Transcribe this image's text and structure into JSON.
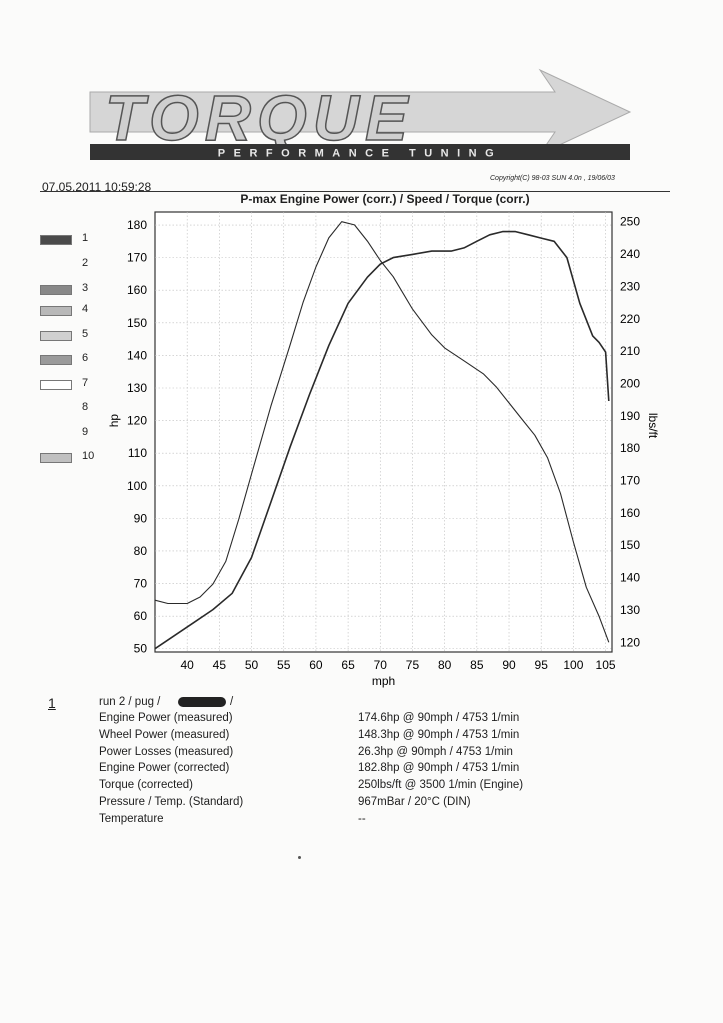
{
  "header": {
    "logo_text": "TORQUE",
    "logo_subtext": "PERFORMANCE TUNING",
    "date": "07.05.2011 10:59:28",
    "copyright": "Copyright(C) 98-03 SUN 4.0n , 19/06/03"
  },
  "chart_data": {
    "type": "line",
    "title": "P-max Engine Power  (corr.) / Speed / Torque (corr.)",
    "xlabel": "mph",
    "ylabel_left": "hp",
    "ylabel_right": "lbs/ft",
    "xlim": [
      35,
      106
    ],
    "ylim_left": [
      49,
      184
    ],
    "ylim_right": [
      117,
      253
    ],
    "x_ticks": [
      40,
      45,
      50,
      55,
      60,
      65,
      70,
      75,
      80,
      85,
      90,
      95,
      100,
      105
    ],
    "y_ticks_left": [
      50,
      60,
      70,
      80,
      90,
      100,
      110,
      120,
      130,
      140,
      150,
      160,
      170,
      180
    ],
    "y_ticks_right": [
      120,
      130,
      140,
      150,
      160,
      170,
      180,
      190,
      200,
      210,
      220,
      230,
      240,
      250
    ],
    "grid": true,
    "series": [
      {
        "axis": "left",
        "points": [
          [
            35,
            50
          ],
          [
            38,
            54
          ],
          [
            41,
            58
          ],
          [
            44,
            62
          ],
          [
            47,
            67
          ],
          [
            50,
            78
          ],
          [
            53,
            95
          ],
          [
            56,
            112
          ],
          [
            59,
            128
          ],
          [
            62,
            143
          ],
          [
            65,
            156
          ],
          [
            68,
            164
          ],
          [
            70,
            168
          ],
          [
            72,
            170
          ],
          [
            75,
            171
          ],
          [
            78,
            172
          ],
          [
            81,
            172
          ],
          [
            83,
            173
          ],
          [
            85,
            175
          ],
          [
            87,
            177
          ],
          [
            89,
            178
          ],
          [
            91,
            178
          ],
          [
            93,
            177
          ],
          [
            95,
            176
          ],
          [
            97,
            175
          ],
          [
            99,
            170
          ],
          [
            101,
            156
          ],
          [
            103,
            146
          ],
          [
            104,
            144
          ],
          [
            105,
            141
          ],
          [
            105.5,
            126
          ]
        ]
      },
      {
        "axis": "right",
        "points": [
          [
            35,
            133
          ],
          [
            37,
            132
          ],
          [
            40,
            132
          ],
          [
            42,
            134
          ],
          [
            44,
            138
          ],
          [
            46,
            145
          ],
          [
            48,
            158
          ],
          [
            50,
            172
          ],
          [
            53,
            193
          ],
          [
            56,
            212
          ],
          [
            58,
            225
          ],
          [
            60,
            236
          ],
          [
            62,
            245
          ],
          [
            64,
            250
          ],
          [
            66,
            249
          ],
          [
            68,
            244
          ],
          [
            70,
            238
          ],
          [
            72,
            233
          ],
          [
            75,
            223
          ],
          [
            78,
            215
          ],
          [
            80,
            211
          ],
          [
            83,
            207
          ],
          [
            86,
            203
          ],
          [
            88,
            199
          ],
          [
            90,
            194
          ],
          [
            92,
            189
          ],
          [
            94,
            184
          ],
          [
            96,
            177
          ],
          [
            98,
            166
          ],
          [
            100,
            151
          ],
          [
            102,
            137
          ],
          [
            104,
            128
          ],
          [
            105.5,
            120
          ]
        ]
      }
    ],
    "legend": [
      "1",
      "2",
      "3",
      "4",
      "5",
      "6",
      "7",
      "8",
      "9",
      "10"
    ]
  },
  "legend_swatches": [
    "#4a4a4a",
    "",
    "#888888",
    "#b8b8b8",
    "#d0d0d0",
    "#9a9a9a",
    "#ffffff",
    "",
    "",
    "#c0c0c0"
  ],
  "summary": {
    "index": "1",
    "run": "run 2 / pug /",
    "run_suffix": "/",
    "rows": [
      {
        "label": "Engine Power (measured)",
        "value": "174.6hp @ 90mph / 4753 1/min"
      },
      {
        "label": "Wheel Power (measured)",
        "value": "148.3hp @ 90mph / 4753 1/min"
      },
      {
        "label": "Power Losses (measured)",
        "value": "26.3hp @ 90mph / 4753 1/min"
      },
      {
        "label": "Engine Power (corrected)",
        "value": "182.8hp @ 90mph / 4753 1/min"
      },
      {
        "label": "Torque (corrected)",
        "value": "250lbs/ft @ 3500 1/min (Engine)"
      },
      {
        "label": "Pressure / Temp. (Standard)",
        "value": "967mBar / 20°C (DIN)"
      },
      {
        "label": "Temperature",
        "value": "--"
      }
    ]
  }
}
